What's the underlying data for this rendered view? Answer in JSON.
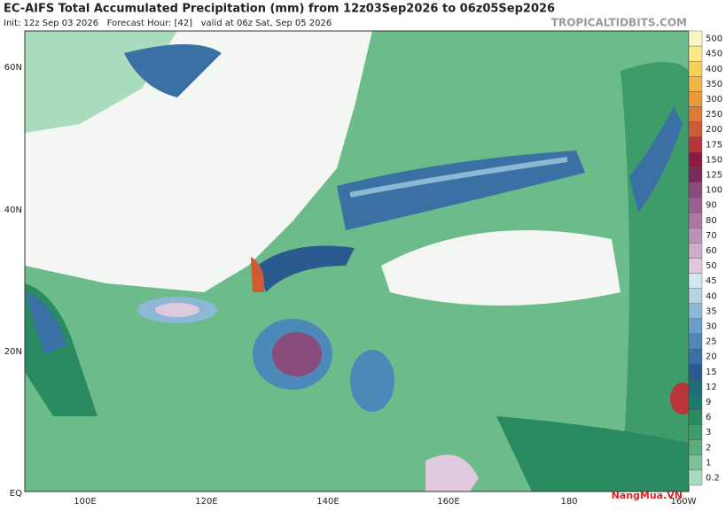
{
  "header": {
    "title": "EC-AIFS Total Accumulated Precipitation (mm) from 12z03Sep2026 to 06z05Sep2026",
    "subtitle": "Init: 12z Sep 03 2026   Forecast Hour: [42]   valid at 06z Sat, Sep 05 2026",
    "site": "TROPICALTIDBITS.COM"
  },
  "map": {
    "lat_labels": [
      "60N",
      "40N",
      "20N",
      "EQ"
    ],
    "lon_labels": [
      "100E",
      "120E",
      "140E",
      "160E",
      "180",
      "160W"
    ]
  },
  "colorbar": {
    "levels": [
      500,
      450,
      400,
      350,
      300,
      250,
      200,
      175,
      150,
      125,
      100,
      90,
      80,
      70,
      60,
      50,
      45,
      40,
      35,
      30,
      25,
      20,
      15,
      12,
      9,
      6,
      3,
      2,
      1,
      0.2
    ],
    "colors": [
      "#fdf6c4",
      "#fde98a",
      "#f7d05a",
      "#f2b544",
      "#ea9a3a",
      "#de7a34",
      "#cf5a33",
      "#b8353a",
      "#8c1a3f",
      "#7a2a5a",
      "#8a4b7d",
      "#9a6090",
      "#ab78a4",
      "#bd92b7",
      "#cfaccb",
      "#e0c8df",
      "#d4e6f0",
      "#b6d2e6",
      "#8cb8d6",
      "#6aa0c8",
      "#4c88b8",
      "#3a70a4",
      "#2b5a8e",
      "#1f6d7a",
      "#1a7a6e",
      "#2a8a60",
      "#3e9c6a",
      "#5aae7c",
      "#7cc496",
      "#a8dcbc"
    ]
  },
  "logo": "NangMua.VN"
}
